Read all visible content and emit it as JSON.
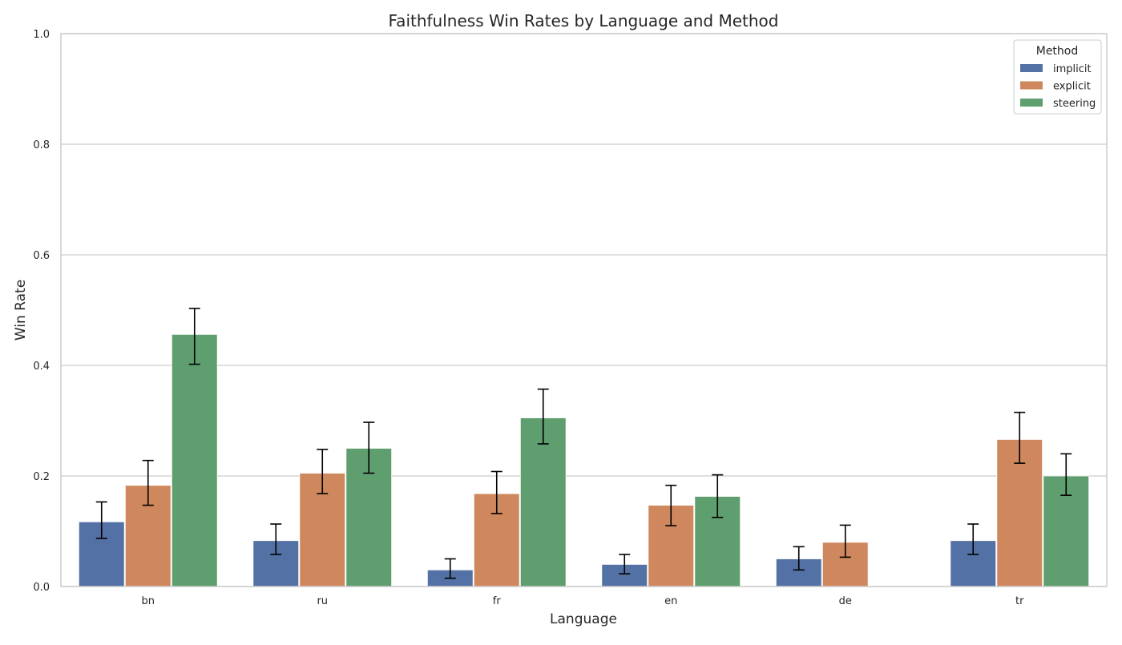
{
  "chart_data": {
    "type": "bar",
    "title": "Faithfulness Win Rates by Language and Method",
    "xlabel": "Language",
    "ylabel": "Win Rate",
    "ylim": [
      0,
      1.0
    ],
    "yticks": [
      "0.0",
      "0.2",
      "0.4",
      "0.6",
      "0.8",
      "1.0"
    ],
    "grid": true,
    "legend": {
      "title": "Method",
      "placement": "top-right"
    },
    "categories": [
      "bn",
      "ru",
      "fr",
      "en",
      "de",
      "tr"
    ],
    "series": [
      {
        "name": "implicit",
        "color": "#5471a5",
        "values": [
          0.117,
          0.083,
          0.03,
          0.04,
          0.05,
          0.083
        ],
        "err_low": [
          0.087,
          0.058,
          0.015,
          0.023,
          0.03,
          0.058
        ],
        "err_high": [
          0.153,
          0.113,
          0.05,
          0.058,
          0.072,
          0.113
        ]
      },
      {
        "name": "explicit",
        "color": "#cf885d",
        "values": [
          0.183,
          0.205,
          0.168,
          0.147,
          0.08,
          0.266
        ],
        "err_low": [
          0.147,
          0.168,
          0.132,
          0.11,
          0.053,
          0.223
        ],
        "err_high": [
          0.228,
          0.248,
          0.208,
          0.183,
          0.111,
          0.315
        ]
      },
      {
        "name": "steering",
        "color": "#5f9e6e",
        "values": [
          0.456,
          0.25,
          0.305,
          0.163,
          null,
          0.2
        ],
        "err_low": [
          0.402,
          0.205,
          0.258,
          0.125,
          null,
          0.165
        ],
        "err_high": [
          0.503,
          0.297,
          0.357,
          0.202,
          null,
          0.24
        ]
      }
    ]
  }
}
